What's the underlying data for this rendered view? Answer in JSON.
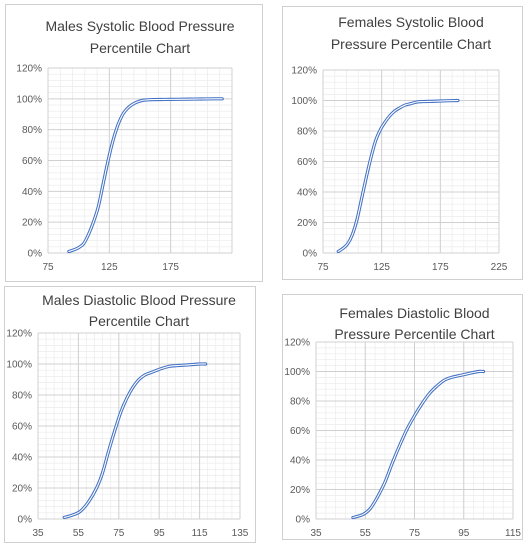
{
  "chart_data": [
    {
      "type": "line",
      "title_lines": [
        "Males Systolic Blood Pressure",
        "Percentile Chart"
      ],
      "xlabel": "",
      "ylabel": "",
      "xlim": [
        75,
        225
      ],
      "xticks": [
        75,
        125,
        175
      ],
      "ylim": [
        0,
        1.2
      ],
      "yticks": [
        0,
        0.2,
        0.4,
        0.6,
        0.8,
        1.0,
        1.2
      ],
      "ytick_labels": [
        "0%",
        "20%",
        "40%",
        "60%",
        "80%",
        "100%",
        "120%"
      ],
      "grid": "major and minor",
      "x": [
        92,
        96,
        100,
        104,
        108,
        112,
        116,
        120,
        124,
        128,
        132,
        136,
        140,
        144,
        148,
        152,
        156,
        160,
        170,
        180,
        190,
        200,
        210,
        217
      ],
      "y": [
        0.01,
        0.02,
        0.035,
        0.06,
        0.12,
        0.2,
        0.3,
        0.45,
        0.6,
        0.73,
        0.83,
        0.9,
        0.94,
        0.965,
        0.98,
        0.99,
        0.993,
        0.995,
        0.996,
        0.997,
        0.998,
        0.999,
        1.0,
        1.0
      ],
      "line_color": "#4472c4"
    },
    {
      "type": "line",
      "title_lines": [
        "Females Systolic Blood",
        "Pressure Percentile Chart"
      ],
      "xlabel": "",
      "ylabel": "",
      "xlim": [
        75,
        225
      ],
      "xticks": [
        75,
        125,
        175,
        225
      ],
      "ylim": [
        0,
        1.2
      ],
      "yticks": [
        0,
        0.2,
        0.4,
        0.6,
        0.8,
        1.0,
        1.2
      ],
      "ytick_labels": [
        "0%",
        "20%",
        "40%",
        "60%",
        "80%",
        "100%",
        "120%"
      ],
      "grid": "major and minor",
      "x": [
        88,
        92,
        96,
        100,
        104,
        108,
        112,
        116,
        120,
        124,
        128,
        132,
        136,
        140,
        145,
        150,
        155,
        160,
        170,
        180,
        190
      ],
      "y": [
        0.01,
        0.03,
        0.06,
        0.12,
        0.22,
        0.36,
        0.5,
        0.63,
        0.74,
        0.81,
        0.86,
        0.9,
        0.93,
        0.95,
        0.97,
        0.98,
        0.99,
        0.993,
        0.995,
        0.998,
        1.0
      ],
      "line_color": "#4472c4"
    },
    {
      "type": "line",
      "title_lines": [
        "Males Diastolic Blood Pressure",
        "Percentile Chart"
      ],
      "xlabel": "",
      "ylabel": "",
      "xlim": [
        35,
        135
      ],
      "xticks": [
        35,
        55,
        75,
        95,
        115,
        135
      ],
      "ylim": [
        0,
        1.2
      ],
      "yticks": [
        0,
        0.2,
        0.4,
        0.6,
        0.8,
        1.0,
        1.2
      ],
      "ytick_labels": [
        "0%",
        "20%",
        "40%",
        "60%",
        "80%",
        "100%",
        "120%"
      ],
      "grid": "major and minor",
      "x": [
        48,
        52,
        56,
        60,
        64,
        67,
        70,
        73,
        76,
        79,
        82,
        85,
        88,
        92,
        96,
        100,
        104,
        110,
        115,
        118
      ],
      "y": [
        0.01,
        0.025,
        0.05,
        0.11,
        0.2,
        0.3,
        0.44,
        0.57,
        0.69,
        0.78,
        0.85,
        0.9,
        0.93,
        0.95,
        0.97,
        0.985,
        0.99,
        0.995,
        1.0,
        1.0
      ],
      "line_color": "#4472c4"
    },
    {
      "type": "line",
      "title_lines": [
        "Females Diastolic Blood",
        "Pressure Percentile Chart"
      ],
      "xlabel": "",
      "ylabel": "",
      "xlim": [
        35,
        115
      ],
      "xticks": [
        35,
        55,
        75,
        95,
        115
      ],
      "ylim": [
        0,
        1.2
      ],
      "yticks": [
        0,
        0.2,
        0.4,
        0.6,
        0.8,
        1.0,
        1.2
      ],
      "ytick_labels": [
        "0%",
        "20%",
        "40%",
        "60%",
        "80%",
        "100%",
        "120%"
      ],
      "grid": "major and minor",
      "x": [
        50,
        54,
        57,
        60,
        63,
        66,
        69,
        72,
        75,
        78,
        81,
        84,
        87,
        90,
        94,
        98,
        101,
        103
      ],
      "y": [
        0.01,
        0.03,
        0.07,
        0.15,
        0.25,
        0.38,
        0.5,
        0.61,
        0.7,
        0.78,
        0.85,
        0.9,
        0.94,
        0.96,
        0.975,
        0.99,
        1.0,
        1.0
      ],
      "line_color": "#4472c4"
    }
  ]
}
